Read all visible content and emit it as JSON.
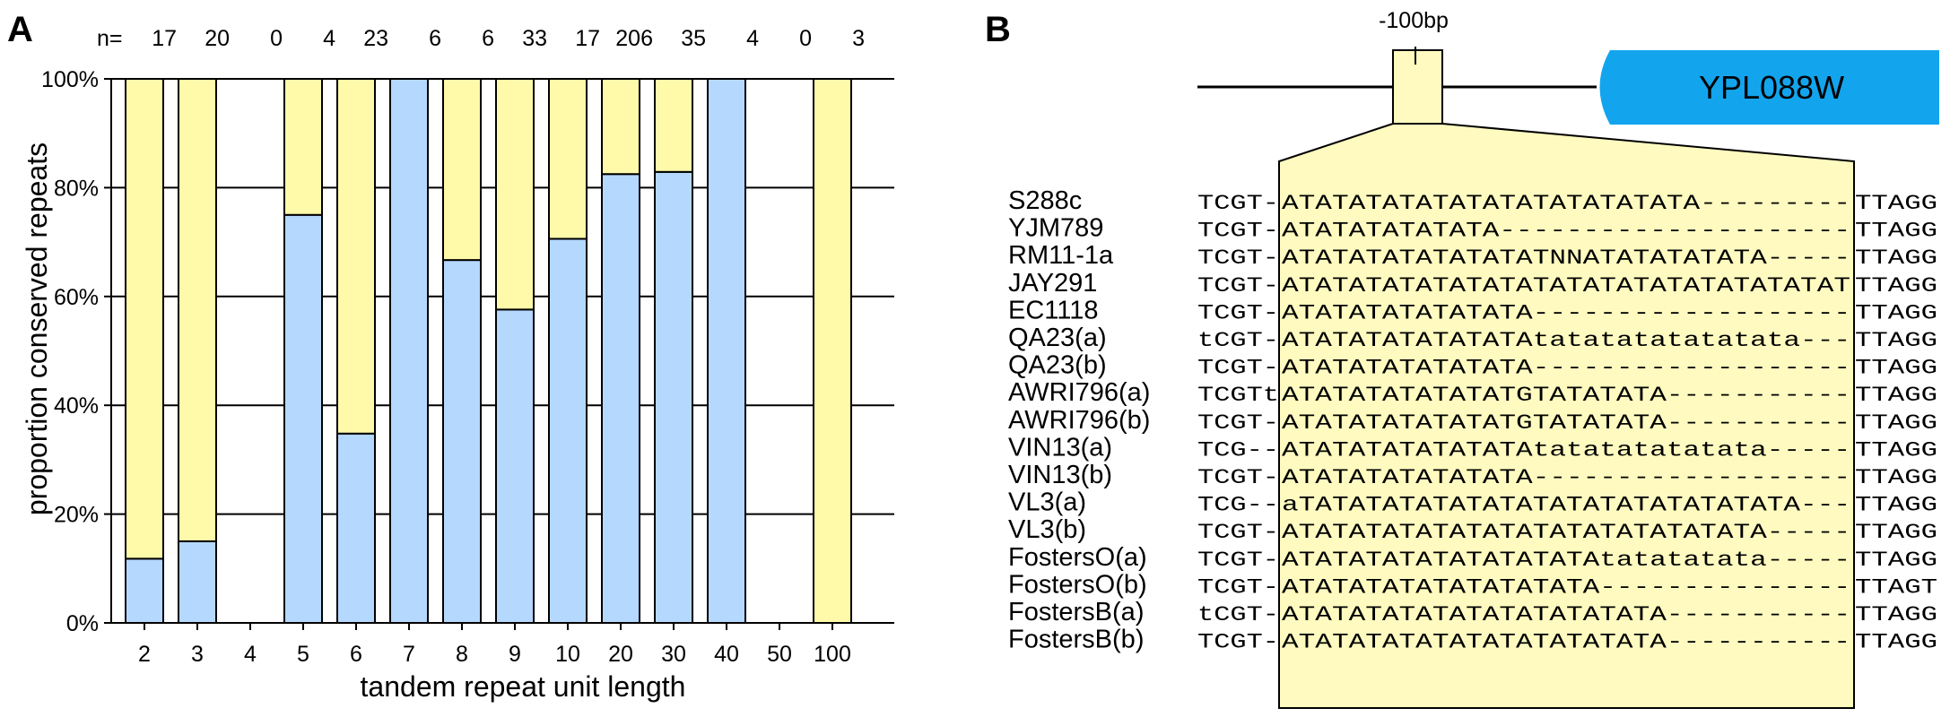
{
  "panel_a": {
    "letter": "A",
    "n_prefix": "n=",
    "chart_data": {
      "type": "bar",
      "stacked": true,
      "categories": [
        "2",
        "3",
        "4",
        "5",
        "6",
        "7",
        "8",
        "9",
        "10",
        "20",
        "30",
        "40",
        "50",
        "100"
      ],
      "n_counts": [
        "17",
        "20",
        "0",
        "4",
        "23",
        "6",
        "6",
        "33",
        "17",
        "206",
        "35",
        "4",
        "0",
        "3"
      ],
      "series": [
        {
          "values": [
            11.8,
            15,
            0,
            75,
            34.8,
            100,
            66.7,
            57.6,
            70.6,
            82.5,
            82.9,
            100,
            0,
            0
          ],
          "color": "#b5d8ff"
        },
        {
          "values": [
            88.2,
            85,
            0,
            25,
            65.2,
            0,
            33.3,
            42.4,
            29.4,
            17.5,
            17.1,
            0,
            0,
            100
          ],
          "color": "#fffaaa"
        }
      ],
      "xlabel": "tandem repeat unit length",
      "ylabel": "proportion conserved repeats",
      "yticks": [
        "0%",
        "20%",
        "40%",
        "60%",
        "80%",
        "100%"
      ],
      "ylim": [
        0,
        100
      ],
      "grid": true
    }
  },
  "panel_b": {
    "letter": "B",
    "position_label": "-100bp",
    "gene_label": "YPL088W",
    "gene_color": "#12a5ee",
    "highlight_color": "#fffbc0",
    "alignment": [
      {
        "strain": "S288c",
        "left": "TCGT-",
        "middle": "ATATATATATATATATATATATATA---------",
        "right": "TTAGG"
      },
      {
        "strain": "YJM789",
        "left": "TCGT-",
        "middle": "ATATATATATATA---------------------",
        "right": "TTAGG"
      },
      {
        "strain": "RM11-1a",
        "left": "TCGT-",
        "middle": "ATATATATATATATATNNATATATATATA-----",
        "right": "TTAGG"
      },
      {
        "strain": "JAY291",
        "left": "TCGT-",
        "middle": "ATATATATATATATATATATATATATATATATAT",
        "right": "TTAGG"
      },
      {
        "strain": "EC1118",
        "left": "TCGT-",
        "middle": "ATATATATATATATA-------------------",
        "right": "TTAGG"
      },
      {
        "strain": "QA23(a)",
        "left": "tCGT-",
        "middle": "ATATATATATATATAtatatatatatatata---",
        "right": "TTAGG"
      },
      {
        "strain": "QA23(b)",
        "left": "TCGT-",
        "middle": "ATATATATATATATA-------------------",
        "right": "TTAGG"
      },
      {
        "strain": "AWRI796(a)",
        "left": "TCGTt",
        "middle": "ATATATATATATATGTATATATA-----------",
        "right": "TTAGG"
      },
      {
        "strain": "AWRI796(b)",
        "left": "TCGT-",
        "middle": "ATATATATATATATGTATATATA-----------",
        "right": "TTAGG"
      },
      {
        "strain": "VIN13(a)",
        "left": "TCG--",
        "middle": "ATATATATATATATAtatatatatatata-----",
        "right": "TTAGG"
      },
      {
        "strain": "VIN13(b)",
        "left": "TCGT-",
        "middle": "ATATATATATATATA-------------------",
        "right": "TTAGG"
      },
      {
        "strain": "VL3(a)",
        "left": "TCG--",
        "middle": "aTATATATATATATATATATATATATATATA---",
        "right": "TTAGG"
      },
      {
        "strain": "VL3(b)",
        "left": "TCGT-",
        "middle": "ATATATATATATATATATATATATATATA-----",
        "right": "TTAGG"
      },
      {
        "strain": "FostersO(a)",
        "left": "TCGT-",
        "middle": "ATATATATATATATATATAtatatatata-----",
        "right": "TTAGG"
      },
      {
        "strain": "FostersO(b)",
        "left": "TCGT-",
        "middle": "ATATATATATATATATATA---------------",
        "right": "TTAGT"
      },
      {
        "strain": "FostersB(a)",
        "left": "tCGT-",
        "middle": "ATATATATATATATATATATATA-----------",
        "right": "TTAGG"
      },
      {
        "strain": "FostersB(b)",
        "left": "TCGT-",
        "middle": "ATATATATATATATATATATATA-----------",
        "right": "TTAGG"
      }
    ]
  }
}
